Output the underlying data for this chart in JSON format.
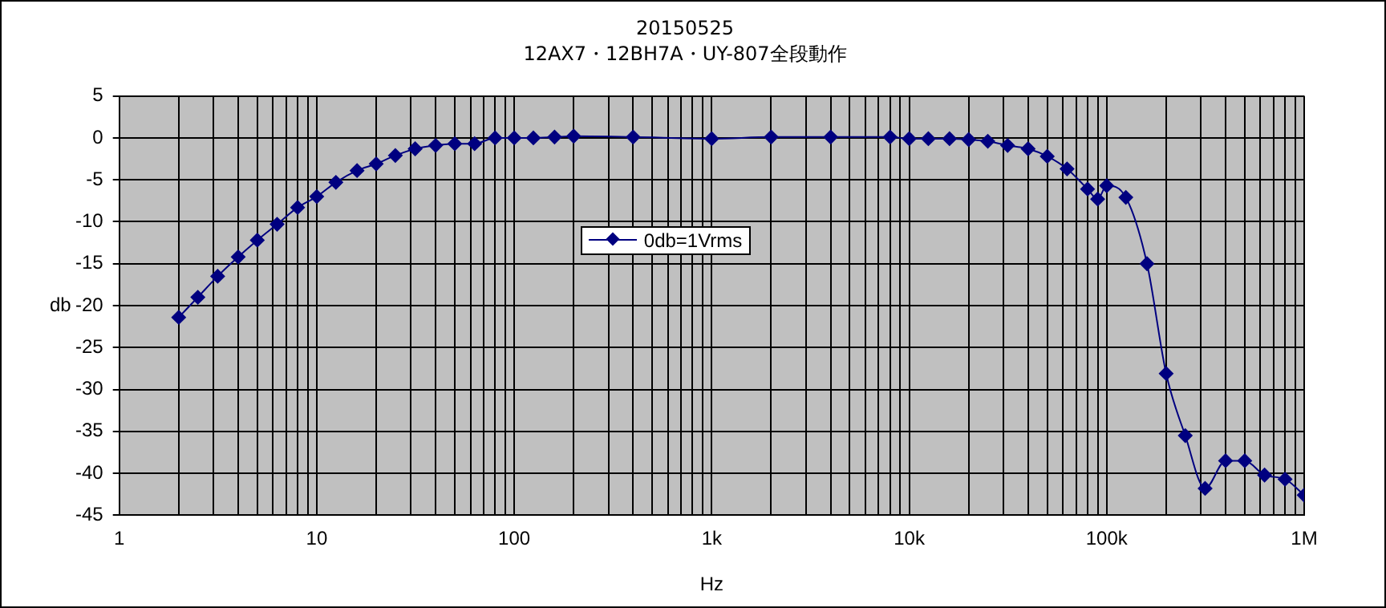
{
  "chart_data": {
    "type": "line",
    "title": "20150525",
    "subtitle": "12AX7・12BH7A・UY-807全段動作",
    "xlabel": "Hz",
    "ylabel": "db",
    "x": [
      2,
      2.5,
      3.15,
      4,
      5,
      6.3,
      8,
      10,
      12.5,
      16,
      20,
      25,
      31.5,
      40,
      50,
      63,
      80,
      100,
      125,
      160,
      200,
      400,
      1000,
      2000,
      4000,
      8000,
      10000,
      12500,
      16000,
      20000,
      25000,
      31500,
      40000,
      50000,
      63000,
      80000,
      90000,
      100000,
      125000,
      160000,
      200000,
      250000,
      315000,
      400000,
      500000,
      630000,
      800000,
      1000000
    ],
    "series": [
      {
        "name": "0db=1Vrms",
        "color": "#000080",
        "values": [
          -21.4,
          -19.0,
          -16.5,
          -14.2,
          -12.2,
          -10.3,
          -8.3,
          -7.0,
          -5.3,
          -3.9,
          -3.1,
          -2.1,
          -1.3,
          -0.9,
          -0.7,
          -0.7,
          0,
          0,
          0,
          0.1,
          0.2,
          0.1,
          -0.1,
          0.1,
          0.1,
          0.1,
          -0.1,
          -0.1,
          -0.1,
          -0.2,
          -0.4,
          -0.9,
          -1.3,
          -2.2,
          -3.7,
          -6.1,
          -7.3,
          -5.7,
          -7.1,
          -15.0,
          -28.1,
          -35.5,
          -41.8,
          -38.5,
          -38.5,
          -40.2,
          -40.7,
          -42.6
        ]
      }
    ],
    "log": "x",
    "xlim": [
      1,
      1000000
    ],
    "xticks": [
      1,
      {
        "value": 2,
        "label": null
      },
      {
        "value": 3,
        "label": null
      },
      {
        "value": 4,
        "label": null
      },
      {
        "value": 5,
        "label": null
      },
      {
        "value": 6,
        "label": null
      },
      {
        "value": 7,
        "label": null
      },
      {
        "value": 8,
        "label": null
      },
      {
        "value": 9,
        "label": null
      },
      10,
      {
        "value": 20,
        "label": null
      },
      {
        "value": 30,
        "label": null
      },
      {
        "value": 40,
        "label": null
      },
      {
        "value": 50,
        "label": null
      },
      {
        "value": 60,
        "label": null
      },
      {
        "value": 70,
        "label": null
      },
      {
        "value": 80,
        "label": null
      },
      {
        "value": 90,
        "label": null
      },
      100,
      {
        "value": 200,
        "label": null
      },
      {
        "value": 300,
        "label": null
      },
      {
        "value": 400,
        "label": null
      },
      {
        "value": 500,
        "label": null
      },
      {
        "value": 600,
        "label": null
      },
      {
        "value": 700,
        "label": null
      },
      {
        "value": 800,
        "label": null
      },
      {
        "value": 900,
        "label": null
      },
      {
        "value": 1000,
        "label": "1k"
      },
      {
        "value": 2000,
        "label": null
      },
      {
        "value": 3000,
        "label": null
      },
      {
        "value": 4000,
        "label": null
      },
      {
        "value": 5000,
        "label": null
      },
      {
        "value": 6000,
        "label": null
      },
      {
        "value": 7000,
        "label": null
      },
      {
        "value": 8000,
        "label": null
      },
      {
        "value": 9000,
        "label": null
      },
      {
        "value": 10000,
        "label": "10k"
      },
      {
        "value": 20000,
        "label": null
      },
      {
        "value": 30000,
        "label": null
      },
      {
        "value": 40000,
        "label": null
      },
      {
        "value": 50000,
        "label": null
      },
      {
        "value": 60000,
        "label": null
      },
      {
        "value": 70000,
        "label": null
      },
      {
        "value": 80000,
        "label": null
      },
      {
        "value": 90000,
        "label": null
      },
      {
        "value": 100000,
        "label": "100k"
      },
      {
        "value": 200000,
        "label": null
      },
      {
        "value": 300000,
        "label": null
      },
      {
        "value": 400000,
        "label": null
      },
      {
        "value": 500000,
        "label": null
      },
      {
        "value": 600000,
        "label": null
      },
      {
        "value": 700000,
        "label": null
      },
      {
        "value": 800000,
        "label": null
      },
      {
        "value": 900000,
        "label": null
      },
      {
        "value": 1000000,
        "label": "1M"
      }
    ],
    "ylim": [
      -45,
      5
    ],
    "yticks": [
      -45,
      -40,
      -35,
      -30,
      -25,
      -20,
      -15,
      -10,
      -5,
      0,
      5
    ],
    "grid": true,
    "legend": "center",
    "marker": "diamond",
    "line_style": "solid"
  }
}
